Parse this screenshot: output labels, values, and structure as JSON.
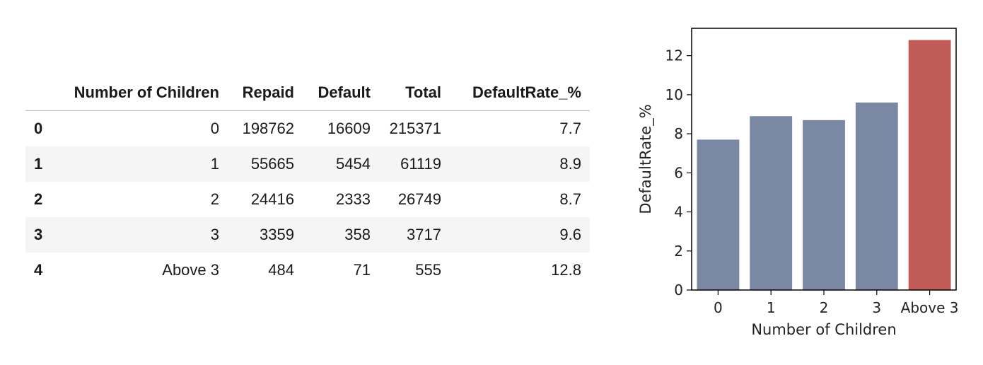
{
  "table": {
    "columns": [
      "",
      "Number of Children",
      "Repaid",
      "Default",
      "Total",
      "DefaultRate_%"
    ],
    "rows": [
      {
        "index": "0",
        "children": "0",
        "repaid": "198762",
        "default": "16609",
        "total": "215371",
        "rate": "7.7"
      },
      {
        "index": "1",
        "children": "1",
        "repaid": "55665",
        "default": "5454",
        "total": "61119",
        "rate": "8.9"
      },
      {
        "index": "2",
        "children": "2",
        "repaid": "24416",
        "default": "2333",
        "total": "26749",
        "rate": "8.7"
      },
      {
        "index": "3",
        "children": "3",
        "repaid": "3359",
        "default": "358",
        "total": "3717",
        "rate": "9.6"
      },
      {
        "index": "4",
        "children": "Above 3",
        "repaid": "484",
        "default": "71",
        "total": "555",
        "rate": "12.8"
      }
    ]
  },
  "chart_data": {
    "type": "bar",
    "categories": [
      "0",
      "1",
      "2",
      "3",
      "Above 3"
    ],
    "values": [
      7.7,
      8.9,
      8.7,
      9.6,
      12.8
    ],
    "xlabel": "Number of Children",
    "ylabel": "DefaultRate_%",
    "ylim": [
      0,
      13.4
    ],
    "yticks": [
      0,
      2,
      4,
      6,
      8,
      10,
      12
    ],
    "grid": false,
    "bar_colors": [
      "#7a88a4",
      "#7a88a4",
      "#7a88a4",
      "#7a88a4",
      "#c15b58"
    ]
  }
}
